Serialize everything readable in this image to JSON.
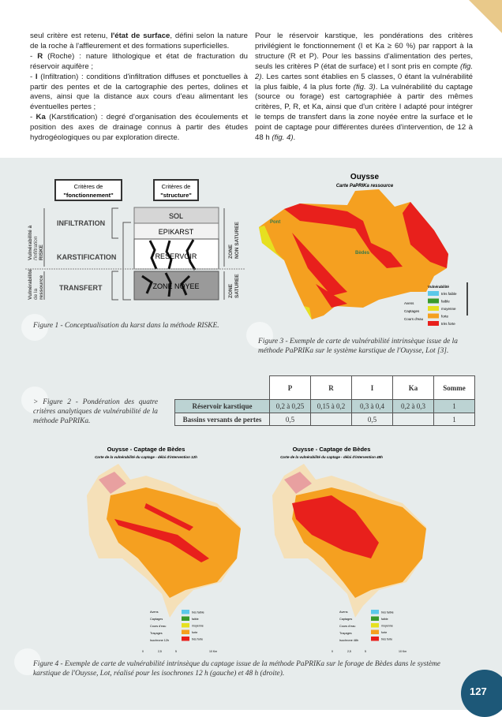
{
  "text": {
    "left_column": [
      {
        "pre": "seul critère est retenu, ",
        "bold": "l'état de surface",
        "post": ", défini selon la nature de la roche à l'affleurement et des formations superficielles."
      },
      {
        "pre": "- ",
        "bold": "R",
        "post": " (Roche) : nature lithologique et état de fracturation du réservoir aquifère ;"
      },
      {
        "pre": "- ",
        "bold": "I",
        "post": " (Infiltration) : conditions d'infiltration diffuses et ponctuelles à partir des pentes et de la cartographie des pertes, dolines et avens, ainsi que la distance aux cours d'eau alimentant les éventuelles pertes ;"
      },
      {
        "pre": "- ",
        "bold": "Ka",
        "post": " (Karstification) : degré d'organisation des écoulements et position des axes de drainage connus à partir des études hydrogéologiques ou par exploration directe."
      }
    ],
    "right_column": {
      "p1": "Pour le réservoir karstique, les pondérations des critères privilégient le fonctionnement (I et Ka ≥ 60 %) par rapport à la structure (R et P). Pour les bassins d'alimentation des pertes, seuls les critères P (état de surface) et I sont pris en compte ",
      "ref1": "(fig. 2)",
      "p2": ". Les cartes sont établies en 5 classes, 0 étant la vulnérabilité la plus faible, 4 la plus forte ",
      "ref2": "(fig. 3)",
      "p3": ". La vulnérabilité du captage (source ou forage) est cartographiée à partir des mêmes critères, P, R, et Ka, ainsi que d'un critère I adapté pour intégrer le temps de transfert dans la zone noyée entre la surface et le point de captage pour différentes durées d'intervention, de 12 à 48 h ",
      "ref3": "(fig. 4)",
      "p4": "."
    }
  },
  "figure1": {
    "header_left": [
      "Critères de",
      "\"fonctionnement\""
    ],
    "header_right": [
      "Critères de",
      "\"structure\""
    ],
    "rows": [
      "INFILTRATION",
      "KARSTIFICATION",
      "TRANSFERT"
    ],
    "layers": [
      "SOL",
      "EPIKARST",
      "RESERVOIR",
      "ZONE NOYEE"
    ],
    "side_left_top": [
      "Vulnérabilité à",
      "l'infiltration",
      "RISKE"
    ],
    "side_left_bottom": [
      "Vulnérabilité",
      "de la",
      "ressource"
    ],
    "side_right_top": [
      "ZONE",
      "NON SATUREE"
    ],
    "side_right_bottom": [
      "ZONE",
      "SATUREE"
    ],
    "caption": "Figure 1 - Conceptualisation du karst dans la méthode RISKE."
  },
  "figure3": {
    "title": "Ouysse",
    "subtitle": "Carte PaPRIKa ressource",
    "places": [
      "Pont",
      "Bèdes"
    ],
    "legend_title": "Vulnérabilité",
    "legend": [
      {
        "label": "très faible",
        "color": "#5bc8e8"
      },
      {
        "label": "faible",
        "color": "#3a9a2a"
      },
      {
        "label": "moyenne",
        "color": "#e6e020"
      },
      {
        "label": "forte",
        "color": "#f5a020"
      },
      {
        "label": "très forte",
        "color": "#e8201c"
      }
    ],
    "symbols": [
      "Avens",
      "Captages",
      "Cours d'eau"
    ],
    "scale": [
      "0",
      "3,5",
      "7",
      "14 Km"
    ],
    "caption": "Figure 3 - Exemple de carte de vulnérabilité intrinsèque issue de la méthode PaPRIKa sur le système karstique de l'Ouysse, Lot [3]."
  },
  "figure2": {
    "caption": "> Figure 2 - Pondération des quatre critères analytiques de vulnérabilité de la méthode PaPRIKa.",
    "columns": [
      "P",
      "R",
      "I",
      "Ka",
      "Somme"
    ],
    "rows": [
      {
        "label": "Réservoir karstique",
        "values": [
          "0,2 à 0,25",
          "0,15 à 0,2",
          "0,3 à 0,4",
          "0,2 à 0,3",
          "1"
        ]
      },
      {
        "label": "Bassins versants de pertes",
        "values": [
          "0,5",
          "",
          "0,5",
          "",
          "1"
        ]
      }
    ]
  },
  "figure4": {
    "maps": [
      {
        "title": "Ouysse - Captage de Bèdes",
        "subtitle": "Carte de la vulnérabilité du captage - délai d'intervention 12h",
        "isochrone": "Isochrone 12h"
      },
      {
        "title": "Ouysse - Captage de Bèdes",
        "subtitle": "Carte de la vulnérabilité du captage - délai d'intervention 48h",
        "isochrone": "Isochrone 48h"
      }
    ],
    "symbols": [
      "Avens",
      "Captages",
      "Cours d'eau",
      "Traçages"
    ],
    "scale": [
      "0",
      "2,5",
      "5",
      "10 Km"
    ],
    "caption": "Figure 4 - Exemple de carte de vulnérabilité intrinsèque du captage issue de la méthode PaPRIKa sur le forage de Bèdes dans le système karstique de l'Ouysse, Lot, réalisé pour les isochrones 12 h (gauche) et 48 h (droite)."
  },
  "page_number": "127",
  "colors": {
    "page_badge": "#1d5878",
    "lower_background": "#e7ecec",
    "corner": "#e9c98a"
  }
}
